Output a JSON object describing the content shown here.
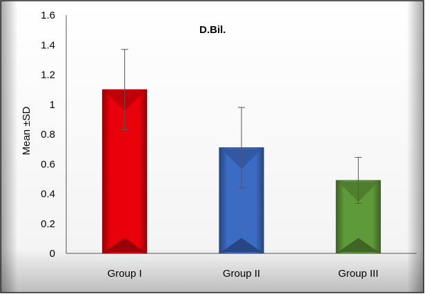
{
  "chart_data": {
    "type": "bar",
    "title": "D.Bil.",
    "xlabel": "",
    "ylabel": "Mean ±SD",
    "categories": [
      "Group I",
      "Group II",
      "Group III"
    ],
    "values": [
      1.1,
      0.71,
      0.49
    ],
    "error_sd": [
      0.27,
      0.27,
      0.155
    ],
    "ylim": [
      0,
      1.6
    ],
    "yticks": [
      "0",
      "0.2",
      "0.4",
      "0.6",
      "0.8",
      "1",
      "1.2",
      "1.4",
      "1.6"
    ],
    "grid": false,
    "legend": "none",
    "colors": [
      "#e8000a",
      "#3c6bc4",
      "#5f9a3a"
    ]
  }
}
